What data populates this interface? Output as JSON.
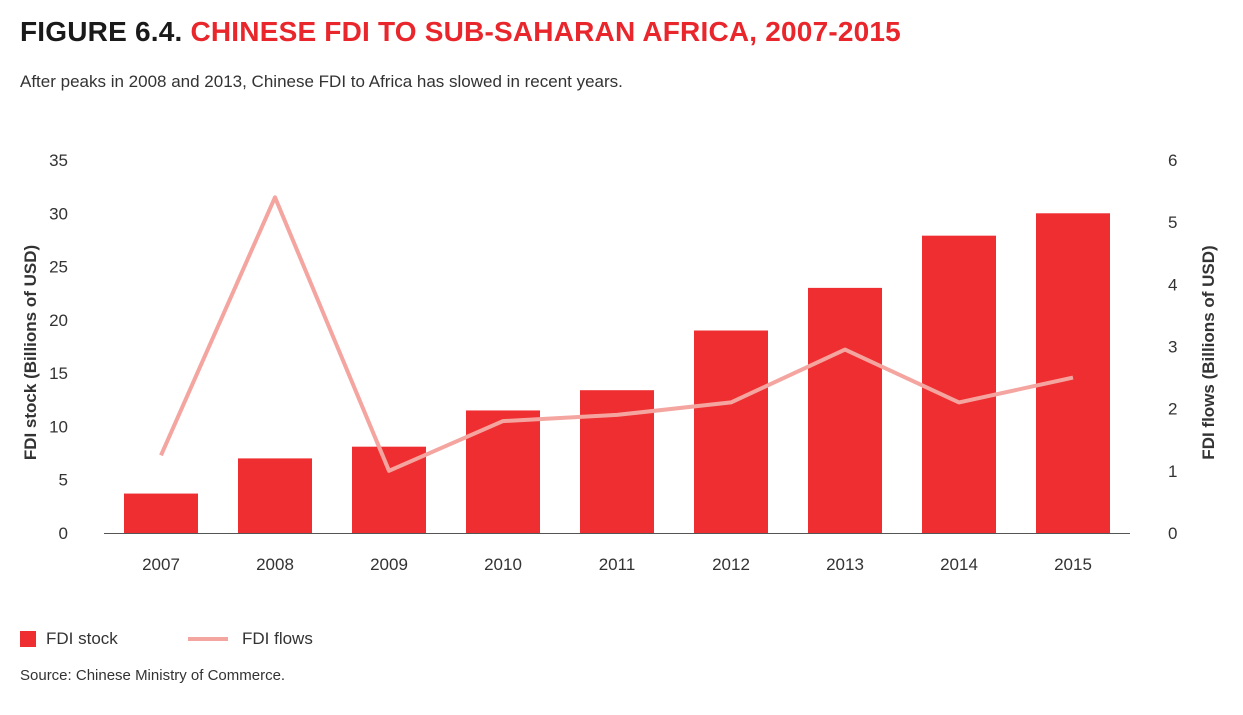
{
  "figure": {
    "prefix": "FIGURE 6.4.",
    "title": "CHINESE FDI TO SUB-SAHARAN AFRICA, 2007-2015",
    "subtitle": "After peaks in 2008 and 2013, Chinese FDI to Africa has slowed in recent years.",
    "source": "Source: Chinese Ministry of Commerce."
  },
  "colors": {
    "title_accent": "#e8262b",
    "bar": "#ee2e31",
    "line": "#f4a5a0",
    "axis": "#555555"
  },
  "legend": {
    "bar_label": "FDI stock",
    "line_label": "FDI flows",
    "placement": "bottom-left"
  },
  "chart_data": {
    "type": "bar+line",
    "categories": [
      "2007",
      "2008",
      "2009",
      "2010",
      "2011",
      "2012",
      "2013",
      "2014",
      "2015"
    ],
    "series": [
      {
        "name": "FDI stock",
        "type": "bar",
        "axis": "left",
        "values": [
          3.7,
          7.0,
          8.1,
          11.5,
          13.4,
          19.0,
          23.0,
          27.9,
          30.0
        ]
      },
      {
        "name": "FDI flows",
        "type": "line",
        "axis": "right",
        "values": [
          1.25,
          5.4,
          1.0,
          1.8,
          1.9,
          2.1,
          2.95,
          2.1,
          2.5
        ]
      }
    ],
    "ylabel_left": "FDI stock (Billions of USD)",
    "ylabel_right": "FDI flows (Billions of USD)",
    "ylim_left": [
      0,
      35
    ],
    "ylim_right": [
      0,
      6
    ],
    "yticks_left": [
      "0",
      "5",
      "10",
      "15",
      "20",
      "25",
      "30",
      "35"
    ],
    "yticks_right": [
      "0",
      "1",
      "2",
      "3",
      "4",
      "5",
      "6"
    ],
    "grid": false
  }
}
